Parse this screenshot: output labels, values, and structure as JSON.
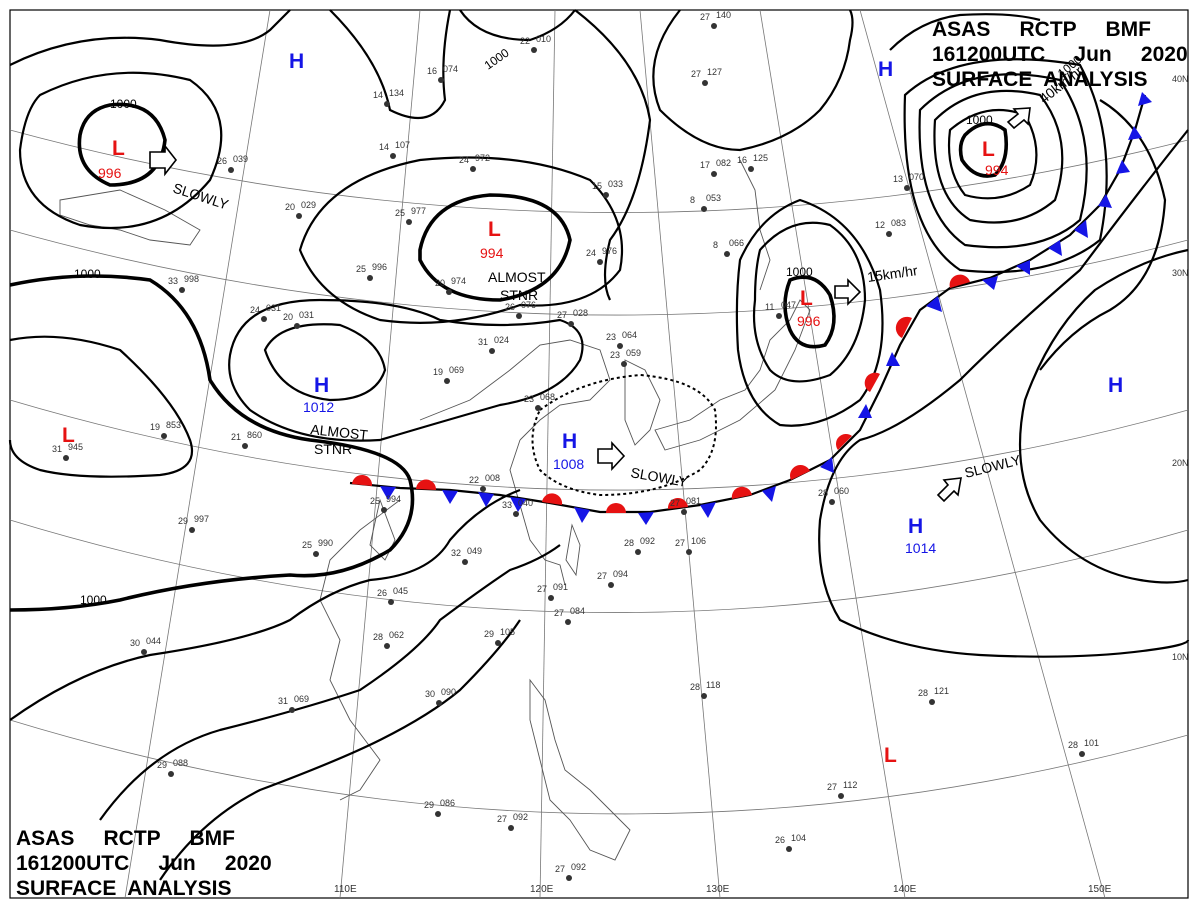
{
  "header_top": {
    "line1": "ASAS     RCTP     BMF",
    "line2": "161200UTC     Jun     2020",
    "line3": "SURFACE  ANALYSIS"
  },
  "header_bottom": {
    "line1": "ASAS     RCTP     BMF",
    "line2": "161200UTC     Jun     2020",
    "line3": "SURFACE  ANALYSIS"
  },
  "colors": {
    "low": "#e61212",
    "high": "#1515e6",
    "warm_front": "#e61212",
    "cold_front": "#1515e6",
    "isobar": "#000000"
  },
  "latitudes": [
    "40N",
    "30N",
    "20N",
    "10N"
  ],
  "longitudes": [
    "110E",
    "120E",
    "130E",
    "140E",
    "150E"
  ],
  "isobar_labels": [
    "1000",
    "1000",
    "1000",
    "1000",
    "1000",
    "1000",
    "1000"
  ],
  "pressure_systems": [
    {
      "type": "L",
      "pressure": "996"
    },
    {
      "type": "L",
      "pressure": "994"
    },
    {
      "type": "L",
      "pressure": "996"
    },
    {
      "type": "L",
      "pressure": "994"
    },
    {
      "type": "L",
      "pressure": ""
    },
    {
      "type": "L",
      "pressure": ""
    },
    {
      "type": "H",
      "pressure": ""
    },
    {
      "type": "H",
      "pressure": ""
    },
    {
      "type": "H",
      "pressure": "1012"
    },
    {
      "type": "H",
      "pressure": "1008"
    },
    {
      "type": "H",
      "pressure": "1014"
    },
    {
      "type": "H",
      "pressure": ""
    }
  ],
  "motion_labels": [
    {
      "text": "SLOWLY"
    },
    {
      "text": "ALMOST"
    },
    {
      "text": "STNR"
    },
    {
      "text": "ALMOST"
    },
    {
      "text": "STNR"
    },
    {
      "text": "SLOWLY"
    },
    {
      "text": "SLOWLY"
    },
    {
      "text": "15km/hr"
    },
    {
      "text": "40km/hr"
    }
  ],
  "stations": [
    [
      "22",
      "010"
    ],
    [
      "16",
      "074"
    ],
    [
      "14",
      "134"
    ],
    [
      "14",
      "107"
    ],
    [
      "24",
      "972"
    ],
    [
      "26",
      "039"
    ],
    [
      "20",
      "029"
    ],
    [
      "25",
      "977"
    ],
    [
      "25",
      "996"
    ],
    [
      "20",
      "974"
    ],
    [
      "20",
      "031"
    ],
    [
      "33",
      "998"
    ],
    [
      "26",
      "076"
    ],
    [
      "15",
      "033"
    ],
    [
      "24",
      "976"
    ],
    [
      "8",
      "066"
    ],
    [
      "8",
      "053"
    ],
    [
      "17",
      "082"
    ],
    [
      "27",
      "028"
    ],
    [
      "23",
      "064"
    ],
    [
      "23",
      "059"
    ],
    [
      "19",
      "069"
    ],
    [
      "24",
      "031"
    ],
    [
      "31",
      "024"
    ],
    [
      "21",
      "860"
    ],
    [
      "19",
      "853"
    ],
    [
      "31",
      "945"
    ],
    [
      "29",
      "997"
    ],
    [
      "25",
      "994"
    ],
    [
      "22",
      "008"
    ],
    [
      "33",
      "040"
    ],
    [
      "23",
      "068"
    ],
    [
      "25",
      "990"
    ],
    [
      "32",
      "049"
    ],
    [
      "26",
      "045"
    ],
    [
      "28",
      "062"
    ],
    [
      "30",
      "044"
    ],
    [
      "31",
      "069"
    ],
    [
      "30",
      "090"
    ],
    [
      "29",
      "105"
    ],
    [
      "27",
      "091"
    ],
    [
      "27",
      "084"
    ],
    [
      "27",
      "094"
    ],
    [
      "28",
      "092"
    ],
    [
      "27",
      "106"
    ],
    [
      "27",
      "081"
    ],
    [
      "28",
      "118"
    ],
    [
      "28",
      "121"
    ],
    [
      "28",
      "101"
    ],
    [
      "27",
      "112"
    ],
    [
      "26",
      "104"
    ],
    [
      "29",
      "086"
    ],
    [
      "27",
      "092"
    ],
    [
      "27",
      "092"
    ],
    [
      "29",
      "088"
    ],
    [
      "28",
      "060"
    ],
    [
      "13",
      "070"
    ],
    [
      "12",
      "083"
    ],
    [
      "11",
      "047"
    ],
    [
      "27",
      "140"
    ],
    [
      "27",
      "127"
    ],
    [
      "16",
      "125"
    ]
  ]
}
